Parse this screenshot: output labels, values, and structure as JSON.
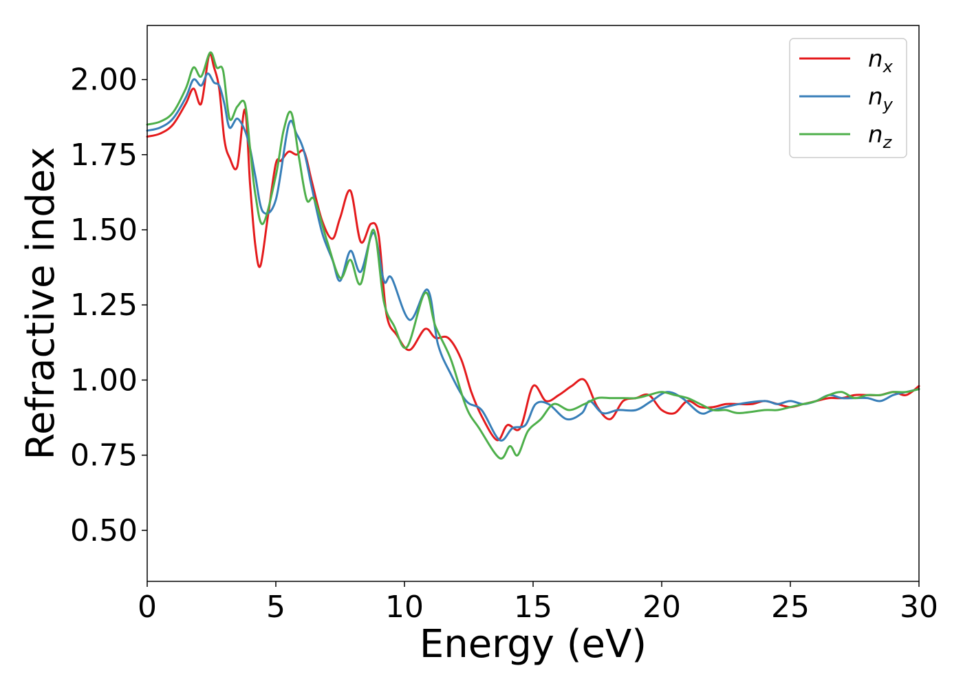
{
  "chart_data": {
    "type": "line",
    "title": "",
    "xlabel": "Energy (eV)",
    "ylabel": "Refractive index",
    "xlim": [
      0,
      30
    ],
    "ylim": [
      0.33,
      2.18
    ],
    "xticks": [
      0,
      5,
      10,
      15,
      20,
      25,
      30
    ],
    "xtick_labels": [
      "0",
      "5",
      "10",
      "15",
      "20",
      "25",
      "30"
    ],
    "yticks": [
      0.5,
      0.75,
      1.0,
      1.25,
      1.5,
      1.75,
      2.0
    ],
    "ytick_labels": [
      "0.50",
      "0.75",
      "1.00",
      "1.25",
      "1.50",
      "1.75",
      "2.00"
    ],
    "grid": false,
    "legend_position": "top-right",
    "series": [
      {
        "name": "n_x",
        "label_base": "n",
        "label_sub": "x",
        "color": "#e41a1c",
        "x": [
          0,
          0.5,
          1,
          1.5,
          1.8,
          2.1,
          2.4,
          2.6,
          2.8,
          3.0,
          3.2,
          3.5,
          3.8,
          4.0,
          4.2,
          4.4,
          4.7,
          5.0,
          5.2,
          5.5,
          5.8,
          6.1,
          6.4,
          6.8,
          7.2,
          7.5,
          7.9,
          8.3,
          8.7,
          9.0,
          9.3,
          9.7,
          10.2,
          10.8,
          11.2,
          11.7,
          12.2,
          12.6,
          13.0,
          13.6,
          14.0,
          14.5,
          15.0,
          15.5,
          16.0,
          16.5,
          17.0,
          17.5,
          18.0,
          18.5,
          19.0,
          19.5,
          20.0,
          20.5,
          21.0,
          21.5,
          22.0,
          22.5,
          23.0,
          23.5,
          24.0,
          24.5,
          25.0,
          25.5,
          26.0,
          26.5,
          27.0,
          27.5,
          28.0,
          28.5,
          29.0,
          29.5,
          30.0
        ],
        "y": [
          1.81,
          1.82,
          1.85,
          1.92,
          1.97,
          1.92,
          2.08,
          2.04,
          1.97,
          1.8,
          1.74,
          1.71,
          1.9,
          1.65,
          1.45,
          1.38,
          1.55,
          1.72,
          1.73,
          1.76,
          1.75,
          1.76,
          1.66,
          1.53,
          1.47,
          1.54,
          1.63,
          1.46,
          1.52,
          1.48,
          1.22,
          1.15,
          1.1,
          1.17,
          1.14,
          1.14,
          1.07,
          0.96,
          0.88,
          0.8,
          0.85,
          0.84,
          0.98,
          0.93,
          0.95,
          0.98,
          1.0,
          0.91,
          0.87,
          0.93,
          0.94,
          0.95,
          0.9,
          0.89,
          0.93,
          0.91,
          0.91,
          0.92,
          0.92,
          0.92,
          0.93,
          0.92,
          0.91,
          0.92,
          0.93,
          0.94,
          0.94,
          0.95,
          0.95,
          0.95,
          0.96,
          0.95,
          0.98
        ]
      },
      {
        "name": "n_y",
        "label_base": "n",
        "label_sub": "y",
        "color": "#377eb8",
        "x": [
          0,
          0.5,
          1,
          1.5,
          1.8,
          2.1,
          2.35,
          2.6,
          2.8,
          3.0,
          3.2,
          3.5,
          3.8,
          4.0,
          4.2,
          4.5,
          5.0,
          5.5,
          5.8,
          6.1,
          6.4,
          6.8,
          7.2,
          7.5,
          7.9,
          8.3,
          8.8,
          9.2,
          9.5,
          10.2,
          10.9,
          11.3,
          11.8,
          12.4,
          13.0,
          13.7,
          14.2,
          14.7,
          15.1,
          15.6,
          16.3,
          16.9,
          17.2,
          17.7,
          18.3,
          19.0,
          19.6,
          20.2,
          20.8,
          21.5,
          22.0,
          23.0,
          24.0,
          24.5,
          25.0,
          25.5,
          26.0,
          26.5,
          27.0,
          27.5,
          28.0,
          28.5,
          29.0,
          29.5,
          30.0
        ],
        "y": [
          1.83,
          1.84,
          1.87,
          1.94,
          2.0,
          1.98,
          2.02,
          1.99,
          1.98,
          1.92,
          1.84,
          1.87,
          1.83,
          1.77,
          1.68,
          1.56,
          1.6,
          1.85,
          1.82,
          1.76,
          1.64,
          1.49,
          1.4,
          1.33,
          1.43,
          1.36,
          1.49,
          1.33,
          1.34,
          1.2,
          1.3,
          1.12,
          1.02,
          0.93,
          0.9,
          0.8,
          0.84,
          0.85,
          0.92,
          0.92,
          0.87,
          0.89,
          0.93,
          0.89,
          0.9,
          0.9,
          0.93,
          0.96,
          0.94,
          0.89,
          0.9,
          0.92,
          0.93,
          0.92,
          0.93,
          0.92,
          0.93,
          0.95,
          0.94,
          0.94,
          0.94,
          0.93,
          0.95,
          0.96,
          0.97
        ]
      },
      {
        "name": "n_z",
        "label_base": "n",
        "label_sub": "z",
        "color": "#4daf4a",
        "x": [
          0,
          0.5,
          1,
          1.5,
          1.8,
          2.1,
          2.45,
          2.7,
          2.95,
          3.2,
          3.5,
          3.8,
          4.0,
          4.2,
          4.5,
          5.0,
          5.3,
          5.6,
          5.9,
          6.2,
          6.5,
          7.0,
          7.5,
          7.9,
          8.3,
          8.8,
          9.2,
          9.6,
          10.1,
          10.8,
          11.2,
          11.8,
          12.4,
          12.9,
          13.7,
          14.1,
          14.4,
          14.8,
          15.3,
          15.8,
          16.4,
          17.0,
          17.5,
          18.0,
          18.5,
          19.0,
          19.5,
          20.0,
          20.5,
          21.0,
          21.5,
          22.0,
          22.5,
          23.0,
          24.0,
          24.5,
          25.0,
          25.5,
          26.0,
          26.5,
          27.0,
          27.5,
          28.0,
          28.5,
          29.0,
          29.5,
          30.0
        ],
        "y": [
          1.85,
          1.86,
          1.89,
          1.97,
          2.04,
          2.01,
          2.09,
          2.04,
          2.03,
          1.87,
          1.91,
          1.92,
          1.77,
          1.62,
          1.52,
          1.68,
          1.83,
          1.89,
          1.74,
          1.6,
          1.6,
          1.46,
          1.34,
          1.4,
          1.32,
          1.5,
          1.26,
          1.18,
          1.11,
          1.29,
          1.18,
          1.07,
          0.91,
          0.84,
          0.74,
          0.78,
          0.75,
          0.83,
          0.87,
          0.92,
          0.9,
          0.92,
          0.94,
          0.94,
          0.94,
          0.94,
          0.95,
          0.96,
          0.95,
          0.94,
          0.92,
          0.9,
          0.9,
          0.89,
          0.9,
          0.9,
          0.91,
          0.92,
          0.93,
          0.95,
          0.96,
          0.94,
          0.95,
          0.95,
          0.96,
          0.96,
          0.97
        ]
      }
    ]
  }
}
